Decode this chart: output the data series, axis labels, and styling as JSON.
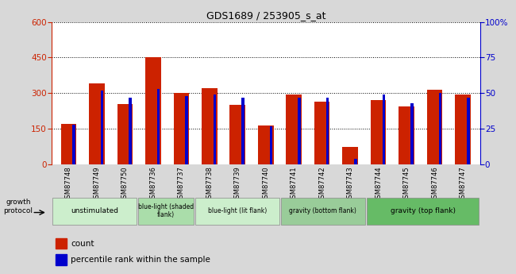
{
  "title": "GDS1689 / 253905_s_at",
  "samples": [
    "GSM87748",
    "GSM87749",
    "GSM87750",
    "GSM87736",
    "GSM87737",
    "GSM87738",
    "GSM87739",
    "GSM87740",
    "GSM87741",
    "GSM87742",
    "GSM87743",
    "GSM87744",
    "GSM87745",
    "GSM87746",
    "GSM87747"
  ],
  "counts": [
    170,
    340,
    255,
    450,
    300,
    320,
    250,
    165,
    295,
    265,
    75,
    270,
    245,
    315,
    295
  ],
  "percentiles": [
    28,
    52,
    47,
    53,
    48,
    49,
    47,
    27,
    47,
    47,
    4,
    49,
    43,
    50,
    47
  ],
  "groups": [
    {
      "label": "unstimulated",
      "start": 0,
      "end": 3,
      "color": "#cceecc"
    },
    {
      "label": "blue-light (shaded\nflank)",
      "start": 3,
      "end": 5,
      "color": "#aaddaa"
    },
    {
      "label": "blue-light (lit flank)",
      "start": 5,
      "end": 8,
      "color": "#cceecc"
    },
    {
      "label": "gravity (bottom flank)",
      "start": 8,
      "end": 11,
      "color": "#99cc99"
    },
    {
      "label": "gravity (top flank)",
      "start": 11,
      "end": 15,
      "color": "#66bb66"
    }
  ],
  "bar_color_red": "#cc2200",
  "bar_color_blue": "#0000cc",
  "ylim_left": [
    0,
    600
  ],
  "ylim_right": [
    0,
    100
  ],
  "yticks_left": [
    0,
    150,
    300,
    450,
    600
  ],
  "yticks_right": [
    0,
    25,
    50,
    75,
    100
  ],
  "group_label": "growth protocol",
  "legend_count": "count",
  "legend_pct": "percentile rank within the sample",
  "bg_color": "#d8d8d8",
  "plot_bg_color": "#ffffff",
  "xtick_bg": "#c8c8c8"
}
